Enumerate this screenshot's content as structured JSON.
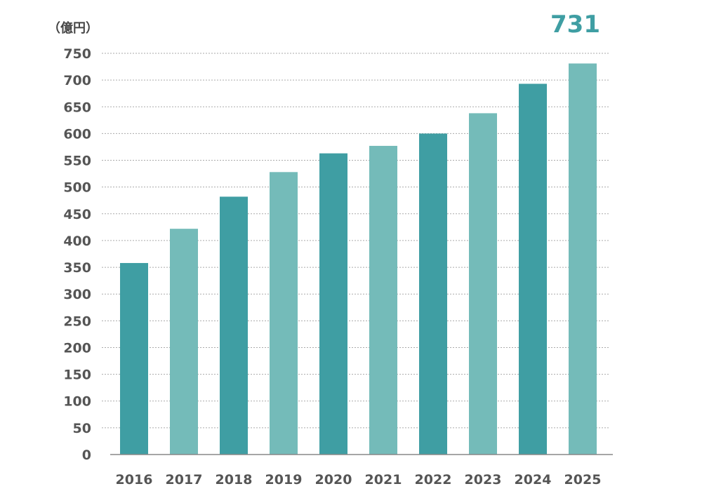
{
  "chart_data": {
    "type": "bar",
    "unit_label": "（億円）",
    "categories": [
      "2016",
      "2017",
      "2018",
      "2019",
      "2020",
      "2021",
      "2022",
      "2023",
      "2024",
      "2025"
    ],
    "values": [
      358,
      422,
      482,
      528,
      563,
      577,
      600,
      638,
      693,
      731
    ],
    "highlight_label": "731",
    "ylim": [
      0,
      750
    ],
    "yticks": [
      0,
      50,
      100,
      150,
      200,
      250,
      300,
      350,
      400,
      450,
      500,
      550,
      600,
      650,
      700,
      750
    ],
    "grid": true,
    "colors": {
      "dark": "#3f9ea3",
      "light": "#74bbb9",
      "highlight": "#3f9ea3"
    }
  }
}
